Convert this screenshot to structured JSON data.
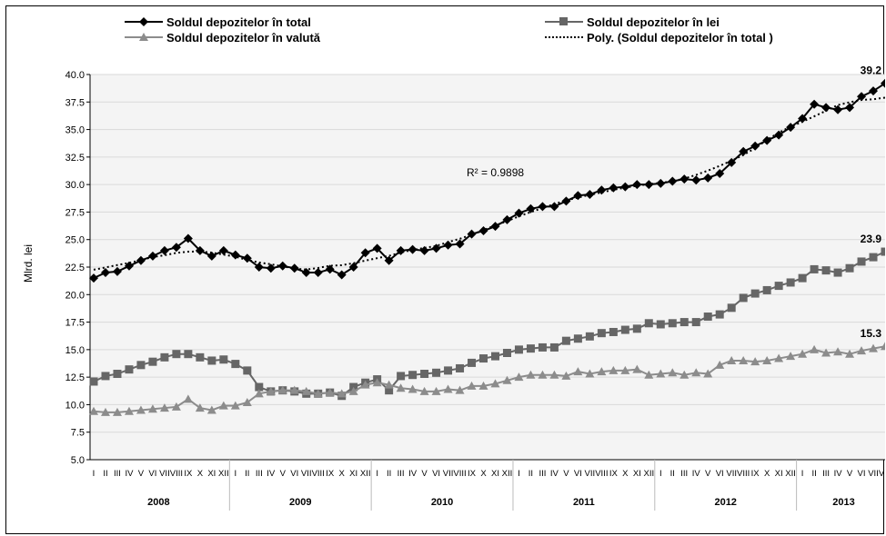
{
  "chart_data": {
    "type": "line",
    "ylabel": "Mlrd. lei",
    "ylim": [
      5.0,
      40.0
    ],
    "y_ticks": [
      "5.0",
      "7.5",
      "10.0",
      "12.5",
      "15.0",
      "17.5",
      "20.0",
      "22.5",
      "25.0",
      "27.5",
      "30.0",
      "32.5",
      "35.0",
      "37.5",
      "40.0"
    ],
    "month_labels": [
      "I",
      "II",
      "III",
      "IV",
      "V",
      "VI",
      "VII",
      "VIII",
      "IX",
      "X",
      "XI",
      "XII"
    ],
    "years": [
      "2008",
      "2009",
      "2010",
      "2011",
      "2012",
      "2013"
    ],
    "months_in_last_year": 6,
    "legend_position": "top",
    "grid": true,
    "r_squared_label": "R² = 0.9898",
    "series": [
      {
        "name": "Soldul depozitelor în  total",
        "marker": "diamond",
        "color": "#000000",
        "values": [
          21.5,
          22.0,
          22.1,
          22.6,
          23.1,
          23.5,
          24.0,
          24.3,
          25.1,
          24.0,
          23.5,
          24.0,
          23.6,
          23.3,
          22.5,
          22.4,
          22.6,
          22.4,
          22.0,
          22.0,
          22.3,
          21.8,
          22.5,
          23.8,
          24.2,
          23.1,
          24.0,
          24.1,
          24.0,
          24.2,
          24.5,
          24.6,
          25.5,
          25.8,
          26.2,
          26.8,
          27.4,
          27.8,
          28.0,
          28.0,
          28.5,
          29.0,
          29.1,
          29.5,
          29.7,
          29.8,
          30.0,
          30.0,
          30.1,
          30.3,
          30.5,
          30.4,
          30.6,
          31.0,
          32.0,
          33.0,
          33.5,
          34.0,
          34.5,
          35.2,
          36.0,
          37.3,
          37.0,
          36.8,
          37.0,
          38.0,
          38.5,
          39.2
        ],
        "end_label": "39.2"
      },
      {
        "name": "Soldul depozitelor în lei",
        "marker": "square",
        "color": "#666666",
        "values": [
          12.1,
          12.6,
          12.8,
          13.2,
          13.6,
          13.9,
          14.3,
          14.6,
          14.6,
          14.3,
          14.0,
          14.1,
          13.7,
          13.1,
          11.6,
          11.2,
          11.3,
          11.2,
          11.0,
          11.0,
          11.1,
          10.8,
          11.6,
          12.0,
          12.3,
          11.3,
          12.6,
          12.7,
          12.8,
          12.9,
          13.1,
          13.3,
          13.8,
          14.2,
          14.4,
          14.7,
          15.0,
          15.1,
          15.2,
          15.2,
          15.8,
          16.0,
          16.2,
          16.5,
          16.6,
          16.8,
          16.9,
          17.4,
          17.3,
          17.4,
          17.5,
          17.5,
          18.0,
          18.2,
          18.8,
          19.7,
          20.1,
          20.4,
          20.8,
          21.1,
          21.5,
          22.3,
          22.2,
          22.0,
          22.4,
          23.0,
          23.4,
          23.9
        ],
        "end_label": "23.9"
      },
      {
        "name": "Soldul depozitelor în valută",
        "marker": "triangle",
        "color": "#8c8c8c",
        "values": [
          9.4,
          9.3,
          9.3,
          9.4,
          9.5,
          9.6,
          9.7,
          9.8,
          10.5,
          9.7,
          9.5,
          9.9,
          9.9,
          10.2,
          11.0,
          11.2,
          11.3,
          11.3,
          11.2,
          11.0,
          11.1,
          11.0,
          11.2,
          11.8,
          12.0,
          11.8,
          11.5,
          11.4,
          11.2,
          11.2,
          11.4,
          11.3,
          11.7,
          11.7,
          11.9,
          12.2,
          12.5,
          12.7,
          12.7,
          12.7,
          12.6,
          13.0,
          12.8,
          13.0,
          13.1,
          13.1,
          13.2,
          12.7,
          12.8,
          12.9,
          12.7,
          12.9,
          12.8,
          13.6,
          14.0,
          14.0,
          13.9,
          14.0,
          14.2,
          14.4,
          14.6,
          15.0,
          14.7,
          14.8,
          14.6,
          14.9,
          15.1,
          15.3
        ],
        "end_label": "15.3"
      },
      {
        "name": "Poly. (Soldul depozitelor în  total )",
        "style": "dotted",
        "color": "#000000",
        "trend_of": 0
      }
    ]
  }
}
